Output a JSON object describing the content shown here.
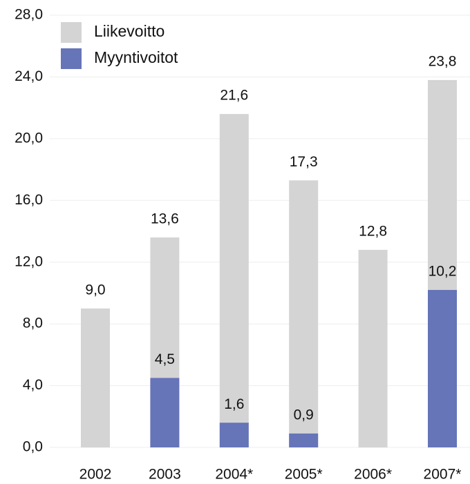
{
  "chart_data": {
    "type": "bar",
    "categories": [
      "2002",
      "2003",
      "2004*",
      "2005*",
      "2006*",
      "2007*"
    ],
    "series": [
      {
        "name": "Liikevoitto",
        "color": "#d4d4d4",
        "values": [
          9.0,
          13.6,
          21.6,
          17.3,
          12.8,
          23.8
        ],
        "value_labels": [
          "9,0",
          "13,6",
          "21,6",
          "17,3",
          "12,8",
          "23,8"
        ]
      },
      {
        "name": "Myyntivoitot",
        "color": "#6674b8",
        "values": [
          null,
          4.5,
          1.6,
          0.9,
          null,
          10.2
        ],
        "value_labels": [
          null,
          "4,5",
          "1,6",
          "0,9",
          null,
          "10,2"
        ]
      }
    ],
    "ylim": [
      0,
      28
    ],
    "yticks": [
      {
        "value": 0,
        "label": "0,0"
      },
      {
        "value": 4,
        "label": "4,0"
      },
      {
        "value": 8,
        "label": "8,0"
      },
      {
        "value": 12,
        "label": "12,0"
      },
      {
        "value": 16,
        "label": "16,0"
      },
      {
        "value": 20,
        "label": "20,0"
      },
      {
        "value": 24,
        "label": "24,0"
      },
      {
        "value": 28,
        "label": "28,0"
      }
    ],
    "grid": true
  }
}
